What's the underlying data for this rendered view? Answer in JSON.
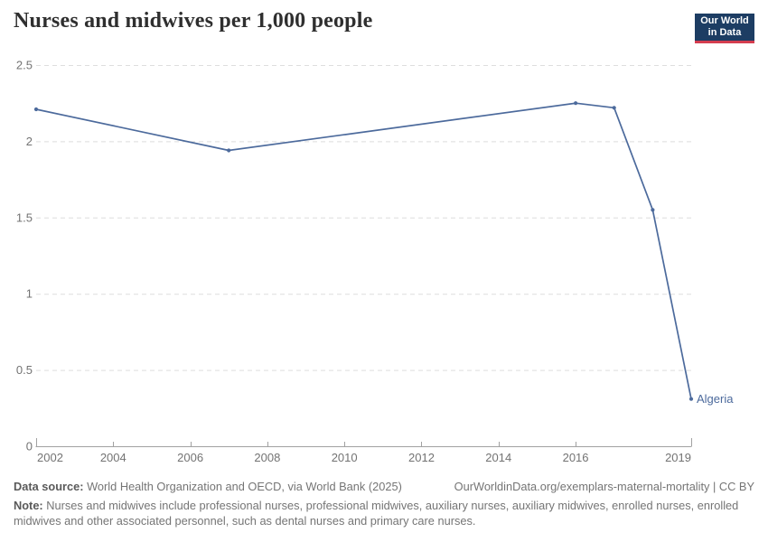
{
  "title": "Nurses and midwives per 1,000 people",
  "logo": {
    "line1": "Our World",
    "line2": "in Data",
    "bg_color": "#1d3d63",
    "accent_color": "#d43d4f"
  },
  "chart_data": {
    "type": "line",
    "title": "Nurses and midwives per 1,000 people",
    "xlabel": "",
    "ylabel": "",
    "xlim": [
      2002,
      2019
    ],
    "ylim": [
      0,
      2.5
    ],
    "x_ticks": [
      2002,
      2004,
      2006,
      2008,
      2010,
      2012,
      2014,
      2016,
      2019
    ],
    "y_ticks": [
      0,
      0.5,
      1,
      1.5,
      2,
      2.5
    ],
    "grid": "horizontal-dashed",
    "legend_position": "end-of-line-label",
    "axis_color": "#a1a1a1",
    "grid_color": "#dedede",
    "tick_label_color": "#737373",
    "series": [
      {
        "name": "Algeria",
        "color": "#4c6a9c",
        "points": [
          {
            "year": 2002,
            "value": 2.21
          },
          {
            "year": 2007,
            "value": 1.94
          },
          {
            "year": 2016,
            "value": 2.25
          },
          {
            "year": 2017,
            "value": 2.22
          },
          {
            "year": 2018,
            "value": 1.55
          },
          {
            "year": 2019,
            "value": 0.31
          }
        ]
      }
    ]
  },
  "footer": {
    "datasource_label": "Data source:",
    "datasource_text": " World Health Organization and OECD, via World Bank (2025)",
    "link": "OurWorldinData.org/exemplars-maternal-mortality | CC BY",
    "note_label": "Note:",
    "note_text": " Nurses and midwives include professional nurses, professional midwives, auxiliary nurses, auxiliary midwives, enrolled nurses, enrolled midwives and other associated personnel, such as dental nurses and primary care nurses."
  }
}
